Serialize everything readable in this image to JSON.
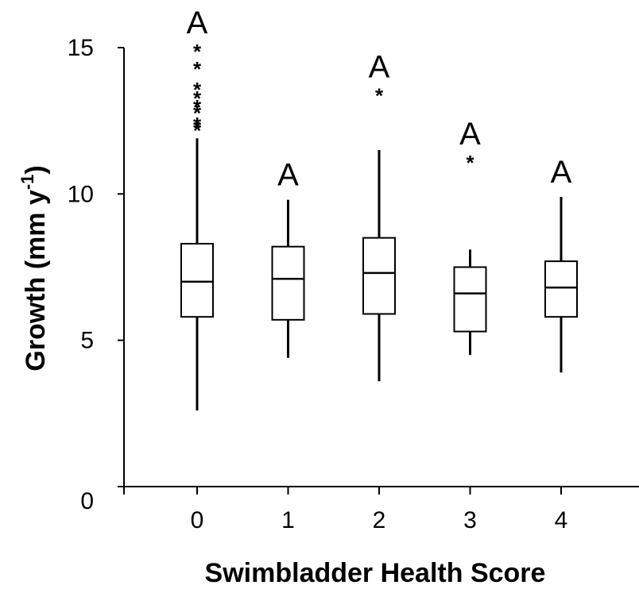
{
  "chart_data": {
    "type": "box",
    "xlabel": "Swimbladder Health Score",
    "ylabel_main": "Growth (mm y",
    "ylabel_sup": "-1",
    "ylabel_close": ")",
    "ylim": [
      0,
      15
    ],
    "yticks": [
      0,
      5,
      10,
      15
    ],
    "categories": [
      "0",
      "1",
      "2",
      "3",
      "4"
    ],
    "boxes": [
      {
        "category": "0",
        "whisker_low": 2.6,
        "q1": 5.8,
        "median": 7.0,
        "q3": 8.3,
        "whisker_high": 11.9,
        "outliers": [
          12.3,
          12.4,
          12.5,
          12.9,
          13.1,
          13.4,
          13.7,
          14.4,
          15.0
        ],
        "letter": "A"
      },
      {
        "category": "1",
        "whisker_low": 4.4,
        "q1": 5.7,
        "median": 7.1,
        "q3": 8.2,
        "whisker_high": 9.8,
        "outliers": [],
        "letter": "A"
      },
      {
        "category": "2",
        "whisker_low": 3.6,
        "q1": 5.9,
        "median": 7.3,
        "q3": 8.5,
        "whisker_high": 11.5,
        "outliers": [
          13.5
        ],
        "letter": "A"
      },
      {
        "category": "3",
        "whisker_low": 4.5,
        "q1": 5.3,
        "median": 6.6,
        "q3": 7.5,
        "whisker_high": 8.1,
        "outliers": [
          11.2
        ],
        "letter": "A"
      },
      {
        "category": "4",
        "whisker_low": 3.9,
        "q1": 5.8,
        "median": 6.8,
        "q3": 7.7,
        "whisker_high": 9.9,
        "outliers": [],
        "letter": "A"
      }
    ],
    "outlier_symbol": "*",
    "grid": false
  }
}
